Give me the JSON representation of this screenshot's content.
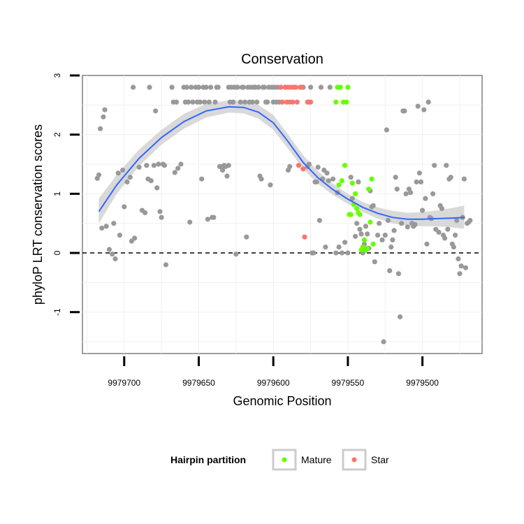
{
  "chart_data": {
    "type": "scatter",
    "title": "Conservation",
    "xlabel": "Genomic Position",
    "ylabel": "phyloP LRT conservation scores",
    "xlim": [
      9979728,
      9979460
    ],
    "x_reversed": true,
    "ylim": [
      -1.7,
      3.0
    ],
    "x_ticks": [
      9979700,
      9979650,
      9979600,
      9979550,
      9979500
    ],
    "x_tick_labels": [
      "9979700",
      "9979650",
      "9979600",
      "9979550",
      "9979500"
    ],
    "y_ticks": [
      -1,
      0,
      1,
      2,
      3
    ],
    "y_tick_labels": [
      "-1",
      "0",
      "1",
      "2",
      "3"
    ],
    "reference_line": {
      "y": 0,
      "style": "dashed"
    },
    "grid": true,
    "legend": {
      "title": "Hairpin partition",
      "position": "bottom",
      "entries": [
        {
          "label": "Mature",
          "color": "#66ff00"
        },
        {
          "label": "Star",
          "color": "#f8766d"
        }
      ]
    },
    "colors": {
      "other": "#999999",
      "mature": "#66ff00",
      "star": "#f8766d",
      "smooth": "#3366ff",
      "band": "#cccccc"
    },
    "smooth": {
      "x": [
        9979717,
        9979705,
        9979690,
        9979675,
        9979660,
        9979645,
        9979630,
        9979620,
        9979610,
        9979600,
        9979590,
        9979580,
        9979570,
        9979560,
        9979550,
        9979540,
        9979530,
        9979520,
        9979510,
        9979500,
        9979490,
        9979480,
        9979472
      ],
      "y": [
        0.7,
        1.15,
        1.6,
        1.95,
        2.22,
        2.4,
        2.47,
        2.46,
        2.38,
        2.2,
        1.88,
        1.53,
        1.27,
        1.07,
        0.91,
        0.77,
        0.67,
        0.6,
        0.57,
        0.57,
        0.58,
        0.59,
        0.6
      ],
      "lower": [
        0.5,
        1.0,
        1.47,
        1.83,
        2.1,
        2.29,
        2.37,
        2.36,
        2.27,
        2.08,
        1.76,
        1.42,
        1.17,
        0.98,
        0.83,
        0.69,
        0.58,
        0.5,
        0.46,
        0.45,
        0.45,
        0.43,
        0.41
      ],
      "upper": [
        0.92,
        1.32,
        1.75,
        2.08,
        2.35,
        2.52,
        2.58,
        2.57,
        2.5,
        2.33,
        2.0,
        1.65,
        1.38,
        1.17,
        1.0,
        0.86,
        0.77,
        0.71,
        0.68,
        0.69,
        0.72,
        0.76,
        0.8
      ]
    },
    "series": [
      {
        "name": "Other",
        "color": "#999999",
        "points": [
          [
            9979718,
            1.26
          ],
          [
            9979717,
            1.32
          ],
          [
            9979716,
            2.1
          ],
          [
            9979714,
            2.3
          ],
          [
            9979713,
            2.42
          ],
          [
            9979715,
            0.42
          ],
          [
            9979712,
            0.45
          ],
          [
            9979710,
            0.06
          ],
          [
            9979708,
            -0.02
          ],
          [
            9979707,
            0.5
          ],
          [
            9979706,
            -0.1
          ],
          [
            9979704,
            1.35
          ],
          [
            9979703,
            0.3
          ],
          [
            9979701,
            1.4
          ],
          [
            9979700,
            0.78
          ],
          [
            9979698,
            1.2
          ],
          [
            9979696,
            1.28
          ],
          [
            9979695,
            0.2
          ],
          [
            9979694,
            2.8
          ],
          [
            9979693,
            0.25
          ],
          [
            9979690,
            1.45
          ],
          [
            9979688,
            0.72
          ],
          [
            9979686,
            0.68
          ],
          [
            9979685,
            1.48
          ],
          [
            9979684,
            1.25
          ],
          [
            9979683,
            2.8
          ],
          [
            9979682,
            1.22
          ],
          [
            9979680,
            1.48
          ],
          [
            9979679,
            2.4
          ],
          [
            9979678,
            1.1
          ],
          [
            9979677,
            1.5
          ],
          [
            9979676,
            0.7
          ],
          [
            9979675,
            0.6
          ],
          [
            9979674,
            1.5
          ],
          [
            9979673,
            1.48
          ],
          [
            9979672,
            -0.2
          ],
          [
            9979668,
            2.8
          ],
          [
            9979667,
            2.55
          ],
          [
            9979666,
            1.36
          ],
          [
            9979665,
            2.55
          ],
          [
            9979664,
            1.43
          ],
          [
            9979662,
            1.5
          ],
          [
            9979660,
            2.8
          ],
          [
            9979659,
            2.55
          ],
          [
            9979658,
            2.8
          ],
          [
            9979657,
            2.55
          ],
          [
            9979656,
            0.52
          ],
          [
            9979655,
            2.8
          ],
          [
            9979654,
            2.55
          ],
          [
            9979652,
            2.8
          ],
          [
            9979651,
            2.55
          ],
          [
            9979650,
            2.8
          ],
          [
            9979649,
            2.55
          ],
          [
            9979648,
            1.25
          ],
          [
            9979647,
            2.8
          ],
          [
            9979646,
            2.55
          ],
          [
            9979645,
            2.8
          ],
          [
            9979644,
            0.57
          ],
          [
            9979643,
            2.55
          ],
          [
            9979642,
            2.8
          ],
          [
            9979641,
            0.6
          ],
          [
            9979640,
            0.6
          ],
          [
            9979639,
            2.55
          ],
          [
            9979638,
            2.8
          ],
          [
            9979637,
            2.8
          ],
          [
            9979636,
            1.46
          ],
          [
            9979635,
            1.46
          ],
          [
            9979634,
            1.4
          ],
          [
            9979633,
            1.48
          ],
          [
            9979632,
            1.46
          ],
          [
            9979631,
            1.3
          ],
          [
            9979630,
            1.48
          ],
          [
            9979630,
            2.8
          ],
          [
            9979629,
            2.55
          ],
          [
            9979628,
            2.8
          ],
          [
            9979627,
            2.55
          ],
          [
            9979626,
            2.8
          ],
          [
            9979625,
            -0.02
          ],
          [
            9979624,
            2.8
          ],
          [
            9979622,
            2.55
          ],
          [
            9979621,
            2.8
          ],
          [
            9979620,
            2.8
          ],
          [
            9979619,
            2.55
          ],
          [
            9979618,
            0.27
          ],
          [
            9979617,
            2.8
          ],
          [
            9979616,
            2.55
          ],
          [
            9979615,
            2.8
          ],
          [
            9979614,
            2.55
          ],
          [
            9979613,
            2.8
          ],
          [
            9979612,
            2.8
          ],
          [
            9979611,
            2.55
          ],
          [
            9979610,
            2.8
          ],
          [
            9979609,
            1.3
          ],
          [
            9979608,
            1.25
          ],
          [
            9979607,
            2.8
          ],
          [
            9979606,
            2.8
          ],
          [
            9979605,
            2.55
          ],
          [
            9979604,
            2.55
          ],
          [
            9979603,
            2.8
          ],
          [
            9979602,
            1.15
          ],
          [
            9979601,
            2.8
          ],
          [
            9979600,
            2.55
          ],
          [
            9979599,
            2.8
          ],
          [
            9979598,
            2.55
          ],
          [
            9979597,
            2.8
          ],
          [
            9979596,
            2.55
          ],
          [
            9979595,
            2.8
          ],
          [
            9979594,
            2.55
          ],
          [
            9979592,
            2.8
          ],
          [
            9979590,
            1.4
          ],
          [
            9979589,
            1.46
          ],
          [
            9979580,
            2.8
          ],
          [
            9979577,
            1.46
          ],
          [
            9979576,
            1.5
          ],
          [
            9979575,
            2.8
          ],
          [
            9979574,
            0.0
          ],
          [
            9979573,
            0.0
          ],
          [
            9979572,
            1.2
          ],
          [
            9979571,
            1.2
          ],
          [
            9979570,
            1.45
          ],
          [
            9979569,
            0.55
          ],
          [
            9979568,
            2.8
          ],
          [
            9979567,
            1.25
          ],
          [
            9979566,
            1.4
          ],
          [
            9979565,
            0.1
          ],
          [
            9979564,
            1.35
          ],
          [
            9979563,
            1.22
          ],
          [
            9979562,
            2.8
          ],
          [
            9979560,
            1.25
          ],
          [
            9979558,
            0.0
          ],
          [
            9979557,
            1.02
          ],
          [
            9979556,
            0.1
          ],
          [
            9979554,
            0.0
          ],
          [
            9979552,
            0.18
          ],
          [
            9979550,
            0.0
          ],
          [
            9979548,
            1.28
          ],
          [
            9979547,
            0.92
          ],
          [
            9979545,
            0.28
          ],
          [
            9979544,
            0.5
          ],
          [
            9979543,
            1.2
          ],
          [
            9979542,
            0.4
          ],
          [
            9979541,
            0.32
          ],
          [
            9979540,
            0.0
          ],
          [
            9979539,
            0.15
          ],
          [
            9979538,
            0.45
          ],
          [
            9979537,
            0.32
          ],
          [
            9979536,
            0.08
          ],
          [
            9979535,
            1.05
          ],
          [
            9979534,
            0.78
          ],
          [
            9979533,
            0.8
          ],
          [
            9979532,
            -0.15
          ],
          [
            9979530,
            0.3
          ],
          [
            9979529,
            0.5
          ],
          [
            9979527,
            0.22
          ],
          [
            9979526,
            -1.5
          ],
          [
            9979525,
            0.3
          ],
          [
            9979524,
            2.08
          ],
          [
            9979523,
            0.55
          ],
          [
            9979522,
            -0.3
          ],
          [
            9979521,
            0.1
          ],
          [
            9979520,
            0.22
          ],
          [
            9979519,
            0.38
          ],
          [
            9979518,
            1.28
          ],
          [
            9979517,
            1.08
          ],
          [
            9979516,
            -0.35
          ],
          [
            9979515,
            -1.08
          ],
          [
            9979514,
            0.5
          ],
          [
            9979513,
            2.4
          ],
          [
            9979512,
            2.4
          ],
          [
            9979511,
            1.0
          ],
          [
            9979510,
            0.44
          ],
          [
            9979509,
            1.08
          ],
          [
            9979508,
            1.02
          ],
          [
            9979507,
            0.5
          ],
          [
            9979506,
            0.45
          ],
          [
            9979505,
            0.48
          ],
          [
            9979504,
            1.2
          ],
          [
            9979503,
            2.48
          ],
          [
            9979502,
            1.35
          ],
          [
            9979501,
            1.2
          ],
          [
            9979500,
            0.72
          ],
          [
            9979499,
            2.42
          ],
          [
            9979498,
            0.92
          ],
          [
            9979497,
            0.15
          ],
          [
            9979496,
            2.55
          ],
          [
            9979495,
            0.6
          ],
          [
            9979494,
            0.58
          ],
          [
            9979493,
            1.0
          ],
          [
            9979492,
            1.48
          ],
          [
            9979491,
            0.4
          ],
          [
            9979489,
            0.35
          ],
          [
            9979488,
            0.8
          ],
          [
            9979487,
            0.75
          ],
          [
            9979486,
            0.3
          ],
          [
            9979485,
            0.25
          ],
          [
            9979484,
            1.48
          ],
          [
            9979483,
            0.4
          ],
          [
            9979482,
            1.25
          ],
          [
            9979481,
            1.28
          ],
          [
            9979480,
            0.15
          ],
          [
            9979479,
            0.1
          ],
          [
            9979478,
            0.3
          ],
          [
            9979477,
            0.55
          ],
          [
            9979476,
            -0.1
          ],
          [
            9979475,
            -0.35
          ],
          [
            9979474,
            -0.22
          ],
          [
            9979473,
            0.6
          ],
          [
            9979472,
            1.25
          ],
          [
            9979471,
            -0.25
          ],
          [
            9979470,
            0.5
          ],
          [
            9979469,
            0.52
          ],
          [
            9979468,
            0.55
          ]
        ]
      },
      {
        "name": "Mature",
        "color": "#66ff00",
        "points": [
          [
            9979558,
            2.55
          ],
          [
            9979557,
            2.8
          ],
          [
            9979556,
            1.15
          ],
          [
            9979555,
            2.8
          ],
          [
            9979554,
            1.22
          ],
          [
            9979553,
            2.55
          ],
          [
            9979552,
            1.48
          ],
          [
            9979551,
            2.55
          ],
          [
            9979550,
            2.8
          ],
          [
            9979549,
            0.65
          ],
          [
            9979548,
            0.65
          ],
          [
            9979547,
            1.18
          ],
          [
            9979546,
            0.82
          ],
          [
            9979545,
            1.0
          ],
          [
            9979544,
            0.75
          ],
          [
            9979543,
            0.68
          ],
          [
            9979542,
            0.65
          ],
          [
            9979541,
            0.05
          ],
          [
            9979540,
            0.1
          ],
          [
            9979539,
            0.22
          ],
          [
            9979538,
            0.05
          ],
          [
            9979537,
            0.08
          ],
          [
            9979536,
            1.08
          ],
          [
            9979535,
            0.52
          ],
          [
            9979534,
            1.25
          ],
          [
            9979533,
            0.15
          ]
        ]
      },
      {
        "name": "Star",
        "color": "#f8766d",
        "points": [
          [
            9979595,
            2.8
          ],
          [
            9979594,
            2.55
          ],
          [
            9979592,
            2.8
          ],
          [
            9979591,
            2.55
          ],
          [
            9979590,
            2.8
          ],
          [
            9979589,
            2.55
          ],
          [
            9979588,
            2.8
          ],
          [
            9979587,
            2.55
          ],
          [
            9979586,
            2.8
          ],
          [
            9979585,
            2.8
          ],
          [
            9979584,
            2.55
          ],
          [
            9979583,
            1.48
          ],
          [
            9979582,
            2.8
          ],
          [
            9979581,
            2.8
          ],
          [
            9979580,
            1.42
          ],
          [
            9979579,
            0.27
          ],
          [
            9979577,
            2.55
          ],
          [
            9979576,
            2.55
          ],
          [
            9979575,
            2.55
          ]
        ]
      }
    ]
  }
}
